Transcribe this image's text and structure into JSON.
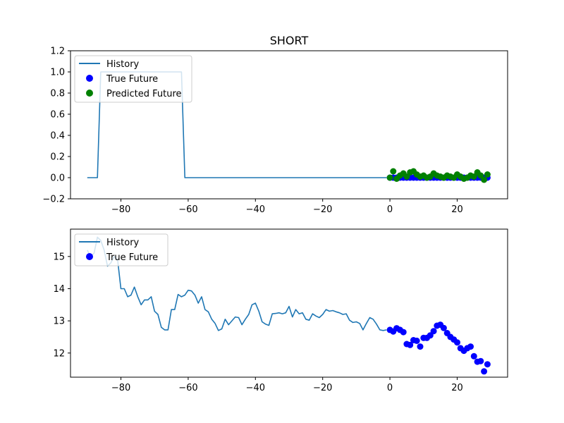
{
  "chart_data": [
    {
      "type": "line",
      "title": "SHORT",
      "xlabel": "",
      "ylabel": "",
      "xlim": [
        -95,
        35
      ],
      "ylim": [
        -0.2,
        1.2
      ],
      "xticks": [
        -80,
        -60,
        -40,
        -20,
        0,
        20
      ],
      "yticks": [
        -0.2,
        0.0,
        0.2,
        0.4,
        0.6,
        0.8,
        1.0,
        1.2
      ],
      "grid": false,
      "legend_placement": "upper-left",
      "legend": [
        "History",
        "True Future",
        "Predicted Future"
      ],
      "colors": {
        "history": "#1f77b4",
        "true_future": "#0000ff",
        "predicted_future": "#008000"
      },
      "series": [
        {
          "name": "History",
          "kind": "line",
          "x": [
            -90,
            -89,
            -88,
            -87,
            -86,
            -85,
            -84,
            -83,
            -82,
            -81,
            -80,
            -79,
            -78,
            -77,
            -76,
            -75,
            -74,
            -73,
            -72,
            -71,
            -70,
            -69,
            -68,
            -67,
            -66,
            -65,
            -64,
            -63,
            -62,
            -61,
            -60,
            -55,
            -50,
            -45,
            -40,
            -35,
            -30,
            -25,
            -20,
            -15,
            -10,
            -5,
            -1
          ],
          "y": [
            0,
            0,
            0,
            0,
            1,
            1,
            1,
            1,
            1,
            1,
            1,
            1,
            1,
            1,
            1,
            1,
            1,
            1,
            1,
            1,
            1,
            1,
            1,
            1,
            1,
            1,
            1,
            1,
            1,
            0,
            0,
            0,
            0,
            0,
            0,
            0,
            0,
            0,
            0,
            0,
            0,
            0,
            0
          ]
        },
        {
          "name": "True Future",
          "kind": "scatter",
          "x": [
            0,
            1,
            2,
            3,
            4,
            5,
            6,
            7,
            8,
            9,
            10,
            11,
            12,
            13,
            14,
            15,
            16,
            17,
            18,
            19,
            20,
            21,
            22,
            23,
            24,
            25,
            26,
            27,
            28,
            29
          ],
          "y": [
            0,
            0,
            0,
            0,
            0,
            0,
            0,
            0,
            0,
            0,
            0,
            0,
            0,
            0,
            0,
            0,
            0,
            0,
            0,
            0,
            0,
            0,
            0,
            0,
            0,
            0,
            0,
            0,
            0,
            0
          ]
        },
        {
          "name": "Predicted Future",
          "kind": "scatter",
          "x": [
            0,
            1,
            2,
            3,
            4,
            5,
            6,
            7,
            8,
            9,
            10,
            11,
            12,
            13,
            14,
            15,
            16,
            17,
            18,
            19,
            20,
            21,
            22,
            23,
            24,
            25,
            26,
            27,
            28,
            29
          ],
          "y": [
            0.0,
            0.06,
            -0.01,
            0.02,
            0.04,
            0.01,
            0.05,
            0.06,
            0.03,
            0.01,
            0.02,
            0.0,
            0.01,
            0.04,
            0.02,
            0.01,
            0.0,
            0.02,
            0.01,
            0.0,
            0.03,
            0.01,
            -0.01,
            0.0,
            0.02,
            0.01,
            0.05,
            0.02,
            -0.02,
            0.03
          ]
        }
      ]
    },
    {
      "type": "line",
      "title": "",
      "xlabel": "",
      "ylabel": "",
      "xlim": [
        -95,
        35
      ],
      "ylim": [
        11.25,
        15.85
      ],
      "xticks": [
        -80,
        -60,
        -40,
        -20,
        0,
        20
      ],
      "yticks": [
        12,
        13,
        14,
        15
      ],
      "grid": false,
      "legend_placement": "upper-left",
      "legend": [
        "History",
        "True Future"
      ],
      "colors": {
        "history": "#1f77b4",
        "true_future": "#0000ff"
      },
      "series": [
        {
          "name": "History",
          "kind": "line",
          "x": [
            -90,
            -89,
            -88,
            -87,
            -86,
            -85,
            -84,
            -83,
            -82,
            -81,
            -80,
            -79,
            -78,
            -77,
            -76,
            -75,
            -74,
            -73,
            -72,
            -71,
            -70,
            -69,
            -68,
            -67,
            -66,
            -65,
            -64,
            -63,
            -62,
            -61,
            -60,
            -59,
            -58,
            -57,
            -56,
            -55,
            -54,
            -53,
            -52,
            -51,
            -50,
            -49,
            -48,
            -47,
            -46,
            -45,
            -44,
            -43,
            -42,
            -41,
            -40,
            -39,
            -38,
            -37,
            -36,
            -35,
            -34,
            -33,
            -32,
            -31,
            -30,
            -29,
            -28,
            -27,
            -26,
            -25,
            -24,
            -23,
            -22,
            -21,
            -20,
            -19,
            -18,
            -17,
            -16,
            -15,
            -14,
            -13,
            -12,
            -11,
            -10,
            -9,
            -8,
            -7,
            -6,
            -5,
            -4,
            -3,
            -2,
            -1
          ],
          "y": [
            15.2,
            15.0,
            15.1,
            15.6,
            15.5,
            15.2,
            14.7,
            14.8,
            15.0,
            14.9,
            14.0,
            14.0,
            13.75,
            13.8,
            14.05,
            13.75,
            13.5,
            13.65,
            13.65,
            13.75,
            13.3,
            13.2,
            12.8,
            12.72,
            12.72,
            13.35,
            13.35,
            13.82,
            13.75,
            13.8,
            13.95,
            13.93,
            13.8,
            13.55,
            13.75,
            13.35,
            13.28,
            13.05,
            12.92,
            12.7,
            12.75,
            13.05,
            12.88,
            13.0,
            13.12,
            13.1,
            12.88,
            13.05,
            13.2,
            13.5,
            13.55,
            13.3,
            12.97,
            12.9,
            12.86,
            13.22,
            13.23,
            13.25,
            13.22,
            13.25,
            13.45,
            13.12,
            13.35,
            13.22,
            13.25,
            13.05,
            13.02,
            13.22,
            13.15,
            13.1,
            13.2,
            13.35,
            13.3,
            13.32,
            13.28,
            13.25,
            13.2,
            13.22,
            13.02,
            12.95,
            12.97,
            12.92,
            12.72,
            12.92,
            13.1,
            13.05,
            12.9,
            12.72,
            12.7,
            12.72
          ]
        },
        {
          "name": "True Future",
          "kind": "scatter",
          "x": [
            0,
            1,
            2,
            3,
            4,
            5,
            6,
            7,
            8,
            9,
            10,
            11,
            12,
            13,
            14,
            15,
            16,
            17,
            18,
            19,
            20,
            21,
            22,
            23,
            24,
            25,
            26,
            27,
            28,
            29
          ],
          "y": [
            12.72,
            12.67,
            12.77,
            12.72,
            12.65,
            12.28,
            12.25,
            12.4,
            12.38,
            12.2,
            12.47,
            12.47,
            12.55,
            12.68,
            12.85,
            12.88,
            12.78,
            12.62,
            12.5,
            12.42,
            12.33,
            12.15,
            12.07,
            12.15,
            12.2,
            11.9,
            11.73,
            11.75,
            11.43,
            11.65
          ]
        }
      ]
    }
  ]
}
